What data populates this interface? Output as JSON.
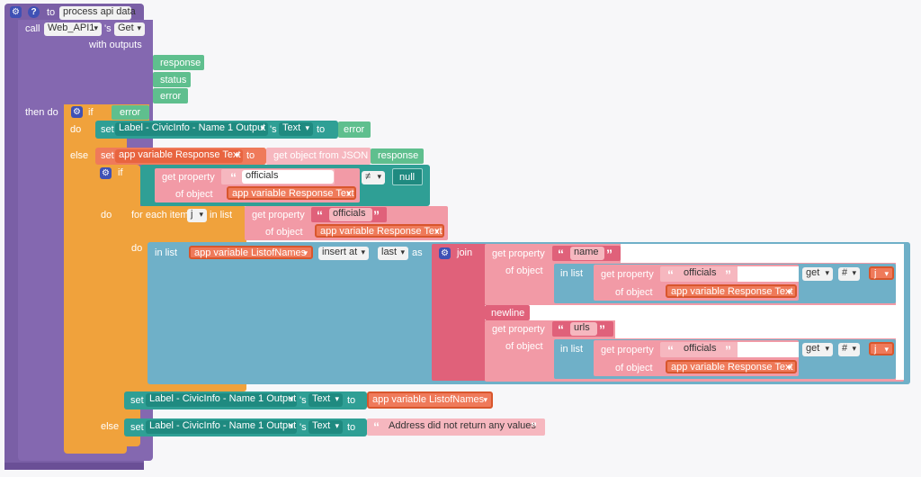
{
  "procedure": {
    "keyword": "to",
    "name": "process api data"
  },
  "call": {
    "keyword": "call",
    "component": "Web_API1",
    "possessive": "'s",
    "method": "Get",
    "with_outputs": "with outputs"
  },
  "outputs": [
    "response",
    "status",
    "error"
  ],
  "then_do": "then do",
  "kw": {
    "if": "if",
    "do": "do",
    "else": "else",
    "set": "set",
    "to": "to",
    "s": "'s",
    "for_each_item": "for each item",
    "in_list": "in list",
    "get_property": "get property",
    "of_object": "of object",
    "in_list2": "in list",
    "insert_at": "insert at",
    "last": "last",
    "as": "as",
    "join": "join",
    "newline": "newline",
    "get": "get",
    "hash": "#"
  },
  "if1_cond": "error",
  "set1": {
    "component": "Label - CivicInfo - Name 1 Output",
    "prop": "Text",
    "value": "error"
  },
  "set2": {
    "var": "app variable Response Text",
    "func": "get object from JSON",
    "arg": "response"
  },
  "if2": {
    "prop": "officials",
    "obj": "app variable Response Text",
    "op": "≠",
    "rhs": "null"
  },
  "foreach": {
    "var": "j",
    "prop": "officials",
    "obj": "app variable Response Text"
  },
  "insert": {
    "list": "app variable ListofNames"
  },
  "join1": {
    "prop": "name",
    "inner_prop": "officials",
    "inner_obj": "app variable Response Text",
    "idx": "j"
  },
  "join2": {
    "prop": "urls",
    "inner_prop": "officials",
    "inner_obj": "app variable Response Text",
    "idx": "j"
  },
  "set3": {
    "component": "Label - CivicInfo - Name 1 Output",
    "prop": "Text",
    "value": "app variable ListofNames"
  },
  "set4": {
    "component": "Label - CivicInfo - Name 1 Output",
    "prop": "Text",
    "value": "Address did not return any values"
  }
}
